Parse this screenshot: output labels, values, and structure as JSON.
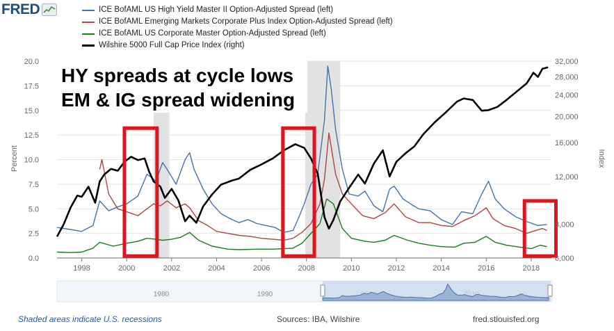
{
  "brand": {
    "name": "FRED",
    "logo_icon": "fred-graph-icon"
  },
  "annotation": {
    "line1": "HY spreads at cycle lows",
    "line2": "EM & IG spread widening"
  },
  "footer": {
    "recession_note": "Shaded areas indicate U.S. recessions",
    "sources": "Sources: IBA, Wilshire",
    "site": "fred.stlouisfed.org"
  },
  "navigator": {
    "year_labels": [
      "1980",
      "1990",
      "2000",
      "2010"
    ]
  },
  "chart_data": {
    "type": "line",
    "yleft_label": "Percent",
    "yright_label": "Index",
    "yleft_range": [
      0,
      20
    ],
    "yright_range": [
      6000,
      32000
    ],
    "yright_scale": "log",
    "xlim": [
      1996.9,
      2018.9
    ],
    "x_ticks": [
      "1998",
      "2000",
      "2002",
      "2004",
      "2006",
      "2008",
      "2010",
      "2012",
      "2014",
      "2016",
      "2018"
    ],
    "yleft_ticks": [
      "0.0",
      "2.5",
      "5.0",
      "7.5",
      "10.0",
      "12.5",
      "15.0",
      "17.5",
      "20.0"
    ],
    "yright_ticks": [
      "6,000",
      "8,000",
      "12,000",
      "16,000",
      "20,000",
      "24,000",
      "28,000",
      "32,000"
    ],
    "recessions": [
      [
        2001.2,
        2001.9
      ],
      [
        2007.95,
        2009.5
      ]
    ],
    "highlight_boxes": [
      [
        1999.9,
        2001.35
      ],
      [
        2006.95,
        2008.35
      ],
      [
        2017.7,
        2019.1
      ]
    ],
    "series": [
      {
        "name": "ICE BofAML US High Yield Master II Option-Adjusted Spread (left)",
        "axis": "left",
        "color": "#4572a7",
        "x": [
          1996.9,
          1997.5,
          1998.0,
          1998.5,
          1998.8,
          1999.2,
          1999.6,
          2000.0,
          2000.5,
          2000.9,
          2001.1,
          2001.3,
          2001.6,
          2001.8,
          2002.2,
          2002.6,
          2002.8,
          2003.0,
          2003.4,
          2003.8,
          2004.2,
          2004.6,
          2005.0,
          2005.4,
          2005.8,
          2006.2,
          2006.6,
          2007.0,
          2007.4,
          2007.6,
          2007.9,
          2008.2,
          2008.5,
          2008.8,
          2008.95,
          2009.1,
          2009.3,
          2009.6,
          2009.9,
          2010.3,
          2010.6,
          2011.0,
          2011.4,
          2011.7,
          2011.9,
          2012.3,
          2012.7,
          2013.0,
          2013.5,
          2014.0,
          2014.5,
          2014.9,
          2015.4,
          2015.8,
          2016.1,
          2016.4,
          2016.8,
          2017.3,
          2017.8,
          2018.3,
          2018.7
        ],
        "y": [
          3.1,
          2.9,
          2.7,
          3.3,
          5.8,
          4.8,
          5.2,
          5.5,
          6.3,
          8.5,
          8.2,
          7.8,
          9.7,
          9.0,
          7.5,
          10.0,
          10.7,
          9.0,
          7.0,
          5.5,
          4.5,
          4.0,
          3.6,
          3.9,
          3.5,
          3.3,
          3.1,
          2.6,
          2.8,
          3.8,
          5.5,
          7.5,
          8.5,
          14.0,
          19.5,
          17.2,
          13.0,
          9.0,
          6.5,
          6.3,
          6.8,
          5.3,
          4.7,
          7.0,
          7.3,
          6.0,
          5.4,
          5.0,
          4.8,
          3.9,
          3.4,
          4.7,
          4.5,
          6.5,
          7.8,
          6.0,
          5.0,
          4.2,
          3.7,
          3.3,
          3.4
        ]
      },
      {
        "name": "ICE BofAML Emerging Markets Corporate Plus Index Option-Adjusted Spread (left)",
        "axis": "left",
        "color": "#aa4643",
        "x": [
          1998.8,
          1998.9,
          1999.2,
          1999.6,
          2000.0,
          2000.5,
          2000.9,
          2001.2,
          2001.5,
          2001.8,
          2002.2,
          2002.6,
          2002.8,
          2003.2,
          2003.6,
          2004.0,
          2004.5,
          2005.0,
          2005.5,
          2006.0,
          2006.5,
          2007.0,
          2007.4,
          2007.8,
          2008.2,
          2008.6,
          2008.8,
          2009.0,
          2009.3,
          2009.6,
          2010.0,
          2010.5,
          2011.0,
          2011.5,
          2011.9,
          2012.4,
          2013.0,
          2013.5,
          2014.0,
          2014.5,
          2015.0,
          2015.5,
          2016.0,
          2016.3,
          2016.8,
          2017.3,
          2017.8,
          2018.2,
          2018.5,
          2018.7
        ],
        "y": [
          9.0,
          10.0,
          6.5,
          5.0,
          4.7,
          4.3,
          5.0,
          5.5,
          5.3,
          5.8,
          5.1,
          5.5,
          5.1,
          3.8,
          3.3,
          2.7,
          2.5,
          2.3,
          2.2,
          2.0,
          1.9,
          1.8,
          2.0,
          2.6,
          3.5,
          5.5,
          8.0,
          12.7,
          8.5,
          6.5,
          5.5,
          4.3,
          4.0,
          4.6,
          5.5,
          4.2,
          3.6,
          3.6,
          3.3,
          3.2,
          3.8,
          4.3,
          5.1,
          4.0,
          3.3,
          3.0,
          2.5,
          2.8,
          3.0,
          2.8
        ]
      },
      {
        "name": "ICE BofAML US Corporate Master Option-Adjusted Spread (left)",
        "axis": "left",
        "color": "#1a7b1a",
        "x": [
          1996.9,
          1997.5,
          1998.0,
          1998.5,
          1998.8,
          1999.4,
          2000.0,
          2000.5,
          2000.9,
          2001.3,
          2001.6,
          2002.0,
          2002.4,
          2002.8,
          2003.2,
          2003.8,
          2004.5,
          2005.0,
          2005.8,
          2006.5,
          2007.0,
          2007.4,
          2007.8,
          2008.2,
          2008.6,
          2008.9,
          2009.2,
          2009.6,
          2010.0,
          2010.6,
          2011.0,
          2011.5,
          2011.9,
          2012.5,
          2013.0,
          2013.5,
          2014.0,
          2014.6,
          2015.0,
          2015.5,
          2016.0,
          2016.4,
          2016.9,
          2017.5,
          2018.0,
          2018.4,
          2018.7
        ],
        "y": [
          0.6,
          0.55,
          0.6,
          1.0,
          1.6,
          1.2,
          1.5,
          1.7,
          2.0,
          1.9,
          1.8,
          1.9,
          2.1,
          2.6,
          1.8,
          1.2,
          0.9,
          0.85,
          0.9,
          0.9,
          0.95,
          1.0,
          1.5,
          2.5,
          3.5,
          6.0,
          5.5,
          3.0,
          2.0,
          1.7,
          1.6,
          1.8,
          2.3,
          1.8,
          1.5,
          1.3,
          1.15,
          1.1,
          1.5,
          1.6,
          2.2,
          1.6,
          1.3,
          1.1,
          0.95,
          1.3,
          1.15
        ]
      },
      {
        "name": "Wilshire 5000 Full Cap Price Index (right)",
        "axis": "right",
        "color": "#000000",
        "x": [
          1996.9,
          1997.2,
          1997.5,
          1997.8,
          1998.0,
          1998.3,
          1998.6,
          1998.8,
          1999.0,
          1999.3,
          1999.6,
          1999.9,
          2000.2,
          2000.5,
          2000.8,
          2001.0,
          2001.2,
          2001.5,
          2001.7,
          2002.0,
          2002.3,
          2002.6,
          2002.8,
          2003.1,
          2003.4,
          2003.8,
          2004.2,
          2004.7,
          2005.0,
          2005.5,
          2006.0,
          2006.5,
          2007.0,
          2007.5,
          2007.9,
          2008.2,
          2008.5,
          2008.8,
          2009.0,
          2009.2,
          2009.5,
          2009.9,
          2010.3,
          2010.6,
          2011.0,
          2011.4,
          2011.7,
          2012.0,
          2012.4,
          2012.8,
          2013.2,
          2013.7,
          2014.2,
          2014.7,
          2015.0,
          2015.4,
          2015.8,
          2016.1,
          2016.5,
          2016.9,
          2017.3,
          2017.8,
          2018.1,
          2018.3,
          2018.5,
          2018.75
        ],
        "y": [
          7200,
          8000,
          9200,
          10200,
          10100,
          11000,
          9600,
          11500,
          12200,
          12800,
          12600,
          13600,
          14200,
          13800,
          14000,
          12500,
          11500,
          11000,
          10000,
          10800,
          9800,
          8200,
          8600,
          8100,
          9300,
          10300,
          11200,
          11600,
          11800,
          12700,
          13300,
          14000,
          15000,
          15800,
          15300,
          14000,
          12300,
          8500,
          7700,
          8300,
          9700,
          10900,
          12200,
          11300,
          13400,
          15000,
          12000,
          13600,
          14600,
          15500,
          17200,
          19000,
          20700,
          22700,
          23300,
          23000,
          21000,
          21100,
          21700,
          23000,
          24500,
          26500,
          29000,
          28000,
          30000,
          30400
        ]
      }
    ]
  }
}
